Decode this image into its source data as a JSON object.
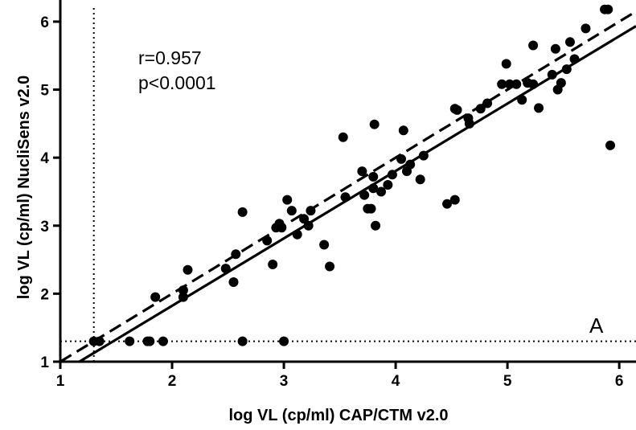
{
  "chart_data": {
    "type": "scatter",
    "title": "",
    "xlabel": "log VL (cp/ml) CAP/CTM v2.0",
    "ylabel": "log VL (cp/ml) NucliSens v2.0",
    "xlim": [
      1,
      6.15
    ],
    "ylim": [
      1,
      6.2
    ],
    "xticks": [
      "1",
      "2",
      "3",
      "4",
      "5",
      "6"
    ],
    "yticks": [
      "1",
      "2",
      "3",
      "4",
      "5",
      "6"
    ],
    "grid": false,
    "panel_label": "A",
    "annotations": [
      "r=0.957",
      "p<0.0001"
    ],
    "reference_lines": {
      "vertical_dotted_x": 1.3,
      "horizontal_dotted_y": 1.3,
      "identity_dashed": {
        "slope": 1.0,
        "intercept": 0.0
      },
      "regression_solid": {
        "slope": 0.991,
        "intercept": -0.16
      }
    },
    "points": [
      [
        1.3,
        1.3
      ],
      [
        1.35,
        1.3
      ],
      [
        1.62,
        1.3
      ],
      [
        1.78,
        1.3
      ],
      [
        1.8,
        1.3
      ],
      [
        1.92,
        1.3
      ],
      [
        2.63,
        1.3
      ],
      [
        3.0,
        1.3
      ],
      [
        1.85,
        1.95
      ],
      [
        2.1,
        1.95
      ],
      [
        2.1,
        2.05
      ],
      [
        2.14,
        2.35
      ],
      [
        2.48,
        2.37
      ],
      [
        2.55,
        2.17
      ],
      [
        2.57,
        2.58
      ],
      [
        2.63,
        3.2
      ],
      [
        2.85,
        2.78
      ],
      [
        2.9,
        2.43
      ],
      [
        2.93,
        2.97
      ],
      [
        2.96,
        3.03
      ],
      [
        2.98,
        2.97
      ],
      [
        3.03,
        3.38
      ],
      [
        3.07,
        3.22
      ],
      [
        3.12,
        2.87
      ],
      [
        3.18,
        3.1
      ],
      [
        3.22,
        3.0
      ],
      [
        3.24,
        3.22
      ],
      [
        3.36,
        2.72
      ],
      [
        3.41,
        2.4
      ],
      [
        3.53,
        4.3
      ],
      [
        3.55,
        3.42
      ],
      [
        3.7,
        3.8
      ],
      [
        3.72,
        3.45
      ],
      [
        3.75,
        3.25
      ],
      [
        3.78,
        3.25
      ],
      [
        3.8,
        3.55
      ],
      [
        3.8,
        3.72
      ],
      [
        3.81,
        4.49
      ],
      [
        3.82,
        3.0
      ],
      [
        3.87,
        3.5
      ],
      [
        3.93,
        3.6
      ],
      [
        3.97,
        3.75
      ],
      [
        4.05,
        3.98
      ],
      [
        4.07,
        4.4
      ],
      [
        4.1,
        3.8
      ],
      [
        4.13,
        3.9
      ],
      [
        4.22,
        3.68
      ],
      [
        4.25,
        4.03
      ],
      [
        4.46,
        3.32
      ],
      [
        4.53,
        3.38
      ],
      [
        4.53,
        4.72
      ],
      [
        4.55,
        4.7
      ],
      [
        4.65,
        4.58
      ],
      [
        4.66,
        4.5
      ],
      [
        4.76,
        4.72
      ],
      [
        4.82,
        4.8
      ],
      [
        4.95,
        5.08
      ],
      [
        4.99,
        5.38
      ],
      [
        5.02,
        5.08
      ],
      [
        5.08,
        5.08
      ],
      [
        5.13,
        4.85
      ],
      [
        5.18,
        5.1
      ],
      [
        5.23,
        5.08
      ],
      [
        5.23,
        5.65
      ],
      [
        5.28,
        4.73
      ],
      [
        5.4,
        5.22
      ],
      [
        5.43,
        5.6
      ],
      [
        5.45,
        5.0
      ],
      [
        5.48,
        5.1
      ],
      [
        5.53,
        5.3
      ],
      [
        5.56,
        5.7
      ],
      [
        5.6,
        5.45
      ],
      [
        5.7,
        5.9
      ],
      [
        5.87,
        6.18
      ],
      [
        5.9,
        6.18
      ],
      [
        5.92,
        4.18
      ]
    ]
  }
}
